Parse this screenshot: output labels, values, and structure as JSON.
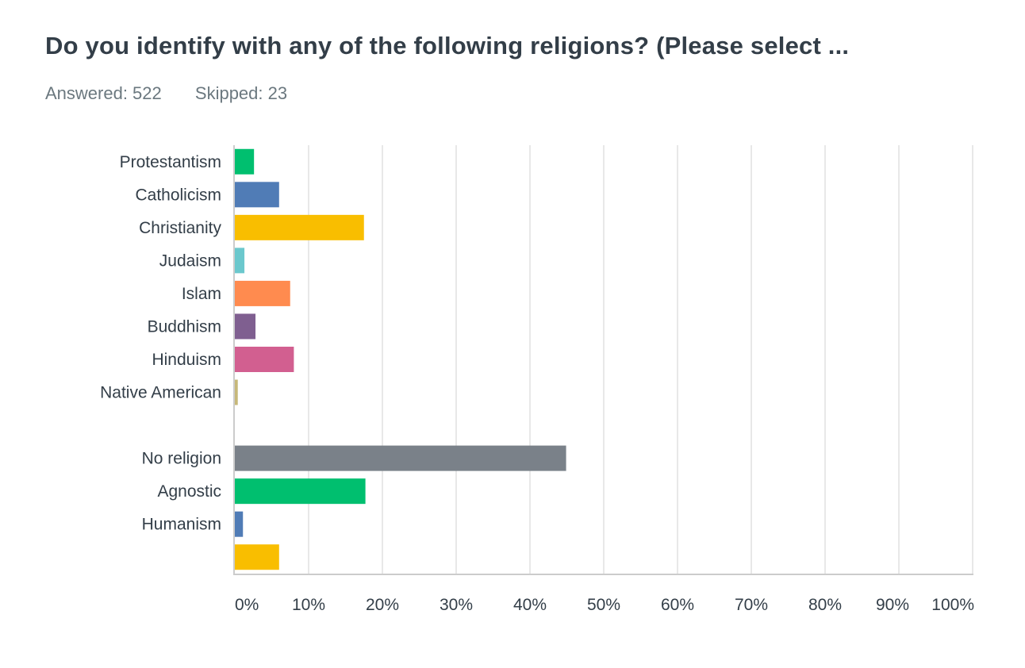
{
  "header": {
    "title": "Do you identify with any of the following religions? (Please select ...",
    "answered": "Answered: 522",
    "skipped": "Skipped: 23"
  },
  "chart_data": {
    "type": "bar",
    "orientation": "horizontal",
    "categories": [
      "Protestantism",
      "Catholicism",
      "Christianity",
      "Judaism",
      "Islam",
      "Buddhism",
      "Hinduism",
      "Native American",
      "",
      "No religion",
      "Agnostic",
      "Humanism",
      ""
    ],
    "values": [
      2.6,
      6.0,
      17.5,
      1.3,
      7.5,
      2.8,
      8.0,
      0.4,
      0,
      44.9,
      17.7,
      1.1,
      6.0
    ],
    "colors": [
      "#00bf6f",
      "#507cb6",
      "#f9be00",
      "#6bc8cd",
      "#ff8b4f",
      "#7f5f90",
      "#d25f90",
      "#c7b879",
      "#8e8e8e",
      "#7a8189",
      "#00bf6f",
      "#507cb6",
      "#f9be00"
    ],
    "xlim": [
      0,
      100
    ],
    "xticks": [
      "0%",
      "10%",
      "20%",
      "30%",
      "40%",
      "50%",
      "60%",
      "70%",
      "80%",
      "90%",
      "100%"
    ],
    "grid": true,
    "title": "",
    "xlabel": "",
    "ylabel": ""
  }
}
